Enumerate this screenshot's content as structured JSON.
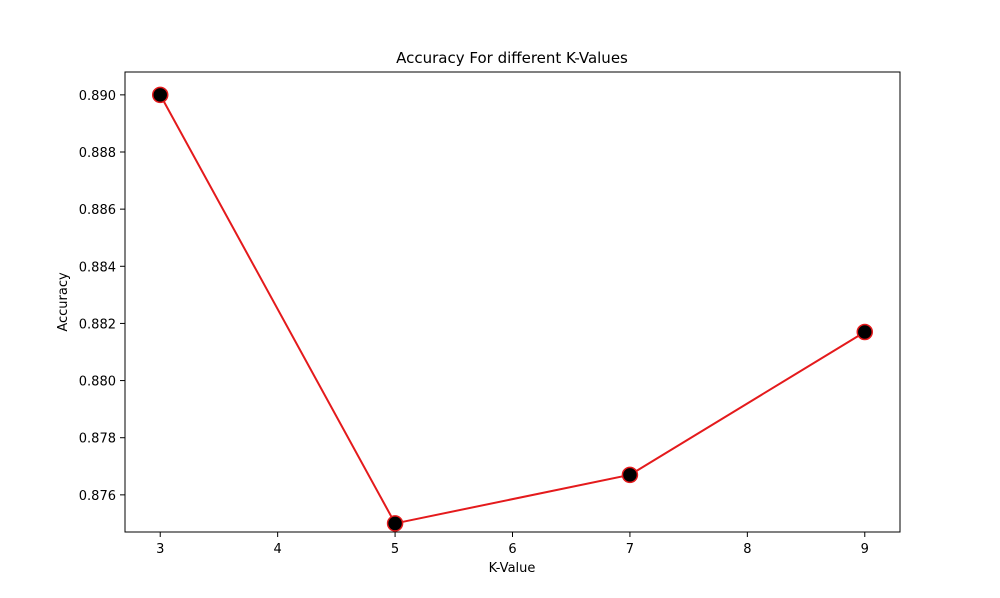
{
  "chart_data": {
    "type": "line",
    "title": "Accuracy For different K-Values",
    "xlabel": "K-Value",
    "ylabel": "Accuracy",
    "x": [
      3,
      5,
      7,
      9
    ],
    "series": [
      {
        "values": [
          0.89,
          0.875,
          0.8767,
          0.8817
        ],
        "line_color": "#e41a1c",
        "marker_face_color": "#000000",
        "marker_edge_color": "#e41a1c"
      }
    ],
    "xlim": [
      2.7,
      9.3
    ],
    "ylim": [
      0.8747,
      0.8908
    ],
    "xticks": [
      3,
      4,
      5,
      6,
      7,
      8,
      9
    ],
    "yticks": [
      0.876,
      0.878,
      0.88,
      0.882,
      0.884,
      0.886,
      0.888,
      0.89
    ],
    "ytick_labels": [
      "0.876",
      "0.878",
      "0.880",
      "0.882",
      "0.884",
      "0.886",
      "0.888",
      "0.890"
    ],
    "grid": false,
    "legend": "none"
  }
}
